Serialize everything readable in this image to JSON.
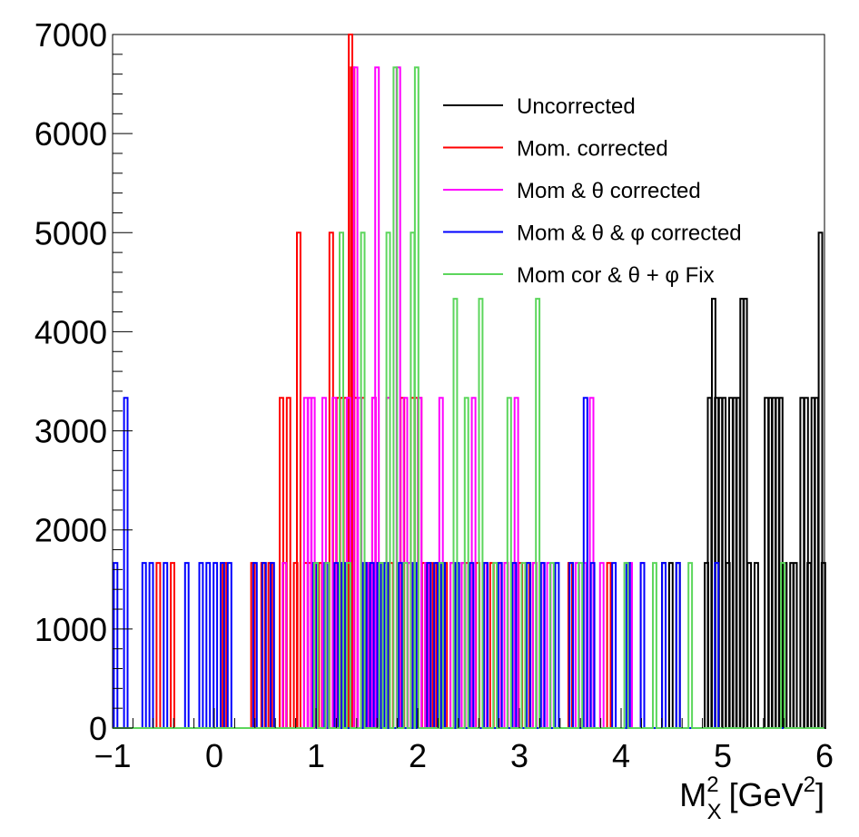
{
  "chart_data": {
    "type": "histogram",
    "title": "",
    "xlabel": "",
    "xlabel_main": "M",
    "xlabel_sup": "2",
    "xlabel_sub": "X",
    "xlabel_unit_open": "[GeV",
    "xlabel_unit_sup": "2",
    "xlabel_unit_close": "]",
    "ylabel": "",
    "xlim": [
      -1,
      6
    ],
    "ylim": [
      0,
      7000
    ],
    "x_ticks": [
      "−1",
      "0",
      "1",
      "2",
      "3",
      "4",
      "5",
      "6"
    ],
    "y_ticks": [
      "0",
      "1000",
      "2000",
      "3000",
      "4000",
      "5000",
      "6000",
      "7000"
    ],
    "grid": false,
    "legend_position": "top-right",
    "bin_range": [
      -1,
      6
    ],
    "bin_count": 200,
    "series": [
      {
        "name": "Uncorrected",
        "color": "#000000",
        "bins": [
          [
            4.42,
            1667
          ],
          [
            4.49,
            1667
          ],
          [
            4.56,
            1667
          ],
          [
            4.84,
            1667
          ],
          [
            4.87,
            3333
          ],
          [
            4.91,
            4333
          ],
          [
            4.94,
            3333
          ],
          [
            4.98,
            3333
          ],
          [
            5.01,
            3333
          ],
          [
            5.05,
            1667
          ],
          [
            5.08,
            3333
          ],
          [
            5.12,
            3333
          ],
          [
            5.15,
            3333
          ],
          [
            5.19,
            4333
          ],
          [
            5.22,
            4333
          ],
          [
            5.26,
            1667
          ],
          [
            5.33,
            1667
          ],
          [
            5.43,
            3333
          ],
          [
            5.47,
            3333
          ],
          [
            5.5,
            3333
          ],
          [
            5.54,
            3333
          ],
          [
            5.57,
            3333
          ],
          [
            5.61,
            1667
          ],
          [
            5.68,
            1667
          ],
          [
            5.71,
            1667
          ],
          [
            5.78,
            3333
          ],
          [
            5.82,
            3333
          ],
          [
            5.85,
            1667
          ],
          [
            5.89,
            3333
          ],
          [
            5.92,
            3333
          ],
          [
            5.96,
            5000
          ],
          [
            5.99,
            1667
          ]
        ]
      },
      {
        "name": "Mom. corrected",
        "color": "#ff0000",
        "bins": [
          [
            -0.55,
            1667
          ],
          [
            -0.41,
            1667
          ],
          [
            0.1,
            1667
          ],
          [
            0.38,
            1667
          ],
          [
            0.48,
            1667
          ],
          [
            0.55,
            1667
          ],
          [
            0.66,
            3333
          ],
          [
            0.69,
            1667
          ],
          [
            0.73,
            3333
          ],
          [
            0.8,
            1667
          ],
          [
            0.83,
            5000
          ],
          [
            0.9,
            1667
          ],
          [
            0.94,
            1667
          ],
          [
            0.97,
            1667
          ],
          [
            1.01,
            1667
          ],
          [
            1.04,
            1667
          ],
          [
            1.11,
            1667
          ],
          [
            1.15,
            5000
          ],
          [
            1.22,
            3333
          ],
          [
            1.25,
            3333
          ],
          [
            1.29,
            3333
          ],
          [
            1.32,
            3333
          ],
          [
            1.34,
            7000
          ],
          [
            1.36,
            6667
          ],
          [
            1.39,
            3333
          ],
          [
            1.46,
            3333
          ],
          [
            1.5,
            1667
          ],
          [
            1.53,
            1667
          ],
          [
            1.57,
            3333
          ],
          [
            1.6,
            1667
          ],
          [
            1.64,
            1667
          ],
          [
            1.71,
            3333
          ],
          [
            1.74,
            1667
          ],
          [
            1.85,
            3333
          ],
          [
            1.92,
            1667
          ],
          [
            1.95,
            3333
          ],
          [
            1.99,
            3333
          ],
          [
            2.02,
            3333
          ],
          [
            2.06,
            1667
          ],
          [
            2.13,
            1667
          ],
          [
            2.2,
            1667
          ],
          [
            2.27,
            1667
          ],
          [
            2.34,
            1667
          ],
          [
            2.45,
            1667
          ],
          [
            2.48,
            1667
          ],
          [
            2.59,
            1667
          ],
          [
            2.66,
            1667
          ],
          [
            2.73,
            1667
          ],
          [
            2.8,
            1667
          ],
          [
            2.87,
            1667
          ],
          [
            2.94,
            1667
          ],
          [
            3.01,
            1667
          ],
          [
            3.08,
            1667
          ],
          [
            3.15,
            1667
          ],
          [
            3.5,
            1667
          ],
          [
            3.88,
            1667
          ]
        ]
      },
      {
        "name": "Mom & θ corrected",
        "color": "#ff00ff",
        "bins": [
          [
            0.69,
            1667
          ],
          [
            0.9,
            3333
          ],
          [
            0.94,
            3333
          ],
          [
            0.97,
            3333
          ],
          [
            1.08,
            3333
          ],
          [
            1.18,
            3333
          ],
          [
            1.32,
            3333
          ],
          [
            1.39,
            6667
          ],
          [
            1.43,
            3333
          ],
          [
            1.53,
            1667
          ],
          [
            1.57,
            3333
          ],
          [
            1.6,
            6667
          ],
          [
            1.71,
            3333
          ],
          [
            1.81,
            6667
          ],
          [
            1.88,
            3333
          ],
          [
            1.92,
            1667
          ],
          [
            2.02,
            3333
          ],
          [
            2.09,
            1667
          ],
          [
            2.23,
            3333
          ],
          [
            2.34,
            1667
          ],
          [
            2.45,
            1667
          ],
          [
            2.55,
            3333
          ],
          [
            2.66,
            1667
          ],
          [
            2.8,
            1667
          ],
          [
            2.87,
            1667
          ],
          [
            2.97,
            3333
          ],
          [
            3.15,
            1667
          ],
          [
            3.22,
            1667
          ],
          [
            3.29,
            1667
          ],
          [
            3.57,
            1667
          ],
          [
            3.64,
            1667
          ],
          [
            3.71,
            3333
          ],
          [
            3.81,
            1667
          ],
          [
            4.09,
            1667
          ],
          [
            4.21,
            1667
          ]
        ]
      },
      {
        "name": "Mom & θ & φ corrected",
        "color": "#0000ff",
        "bins": [
          [
            -0.97,
            1667
          ],
          [
            -0.87,
            3333
          ],
          [
            -0.69,
            1667
          ],
          [
            -0.62,
            1667
          ],
          [
            -0.48,
            1667
          ],
          [
            -0.27,
            1667
          ],
          [
            -0.13,
            1667
          ],
          [
            -0.06,
            1667
          ],
          [
            0.01,
            1667
          ],
          [
            0.08,
            1667
          ],
          [
            0.15,
            1667
          ],
          [
            0.4,
            1667
          ],
          [
            0.49,
            1667
          ],
          [
            0.57,
            1667
          ],
          [
            0.99,
            1667
          ],
          [
            1.1,
            1667
          ],
          [
            1.2,
            1667
          ],
          [
            1.27,
            1667
          ],
          [
            1.48,
            1667
          ],
          [
            1.55,
            1667
          ],
          [
            1.62,
            1667
          ],
          [
            1.69,
            1667
          ],
          [
            1.83,
            1667
          ],
          [
            1.97,
            1667
          ],
          [
            2.11,
            1667
          ],
          [
            2.18,
            1667
          ],
          [
            2.25,
            1667
          ],
          [
            2.39,
            1667
          ],
          [
            2.53,
            1667
          ],
          [
            2.67,
            1667
          ],
          [
            2.81,
            1667
          ],
          [
            2.95,
            1667
          ],
          [
            3.09,
            1667
          ],
          [
            3.23,
            1667
          ],
          [
            3.37,
            1667
          ],
          [
            3.51,
            1667
          ],
          [
            3.65,
            3333
          ],
          [
            3.72,
            1667
          ],
          [
            3.93,
            1667
          ],
          [
            4.07,
            1667
          ],
          [
            4.21,
            1667
          ],
          [
            4.42,
            1667
          ],
          [
            4.56,
            1667
          ],
          [
            4.94,
            1667
          ]
        ]
      },
      {
        "name": "Mom cor & θ + φ Fix",
        "color": "#5cd65c",
        "bins": [
          [
            1.0,
            1667
          ],
          [
            1.11,
            1667
          ],
          [
            1.25,
            5000
          ],
          [
            1.32,
            1667
          ],
          [
            1.46,
            5000
          ],
          [
            1.64,
            1667
          ],
          [
            1.71,
            5000
          ],
          [
            1.78,
            6667
          ],
          [
            1.88,
            1667
          ],
          [
            1.95,
            5000
          ],
          [
            1.99,
            6667
          ],
          [
            2.23,
            1667
          ],
          [
            2.37,
            4333
          ],
          [
            2.48,
            3333
          ],
          [
            2.62,
            4333
          ],
          [
            2.76,
            1667
          ],
          [
            2.9,
            3333
          ],
          [
            3.04,
            1667
          ],
          [
            3.18,
            4333
          ],
          [
            3.32,
            1667
          ],
          [
            3.6,
            1667
          ],
          [
            4.05,
            1667
          ],
          [
            4.33,
            1667
          ],
          [
            4.68,
            1667
          ],
          [
            5.59,
            1667
          ]
        ]
      }
    ]
  }
}
